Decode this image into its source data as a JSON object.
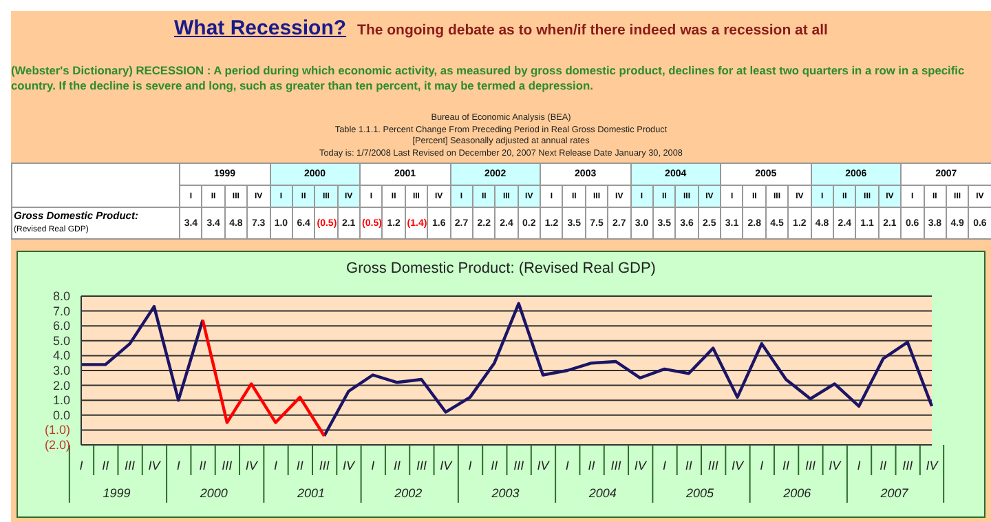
{
  "chart_data": {
    "type": "line",
    "title": "What Recession?",
    "subtitle": "The ongoing debate as to when/if there indeed was a recession at all",
    "annotations": [
      "(Webster's Dictionary)   RECESSION : A period during which economic activity, as measured by gross domestic product, declines for at least two quarters in a row in a specific country. If the decline is severe and long, such as greater than ten percent, it may be termed a depression.",
      "Bureau of Economic Analysis (BEA)",
      "Table 1.1.1. Percent Change From Preceding Period in Real Gross Domestic Product",
      "[Percent]   Seasonally adjusted at annual rates",
      "Today is: 1/7/2008   Last Revised on December 20, 2007  Next Release Date January 30, 2008",
      "Gross Domestic Product:",
      "(Revised Real GDP)",
      "Gross Domestic Product: (Revised Real GDP)",
      "1999",
      "2000",
      "2001",
      "2002",
      "2003",
      "2004",
      "2005",
      "2006",
      "2007"
    ],
    "categories": [
      "I",
      "II",
      "III",
      "IV",
      "I",
      "II",
      "III",
      "IV",
      "I",
      "II",
      "III",
      "IV",
      "I",
      "II",
      "III",
      "IV",
      "I",
      "II",
      "III",
      "IV",
      "I",
      "II",
      "III",
      "IV",
      "I",
      "II",
      "III",
      "IV",
      "I",
      "II",
      "III",
      "IV",
      "I",
      "II",
      "III",
      "IV"
    ],
    "series": [
      {
        "color": "#1c1466",
        "values": [
          3.4,
          3.4,
          4.8,
          7.3,
          1.0,
          6.4,
          null,
          null,
          null,
          null,
          -1.4,
          1.6,
          2.7,
          2.2,
          2.4,
          0.2,
          1.2,
          3.5,
          7.5,
          2.7,
          3.0,
          3.5,
          3.6,
          2.5,
          3.1,
          2.8,
          4.5,
          1.2,
          4.8,
          2.4,
          1.1,
          2.1,
          0.6,
          3.8,
          4.9,
          0.6
        ]
      },
      {
        "color": "#ff0000",
        "values": [
          null,
          null,
          null,
          null,
          null,
          6.4,
          -0.5,
          2.1,
          -0.5,
          1.2,
          -1.4,
          null,
          null,
          null,
          null,
          null,
          null,
          null,
          null,
          null,
          null,
          null,
          null,
          null,
          null,
          null,
          null,
          null,
          null,
          null,
          null,
          null,
          null,
          null,
          null,
          null
        ]
      }
    ],
    "value_labels": [
      "3.4",
      "3.4",
      "4.8",
      "7.3",
      "1.0",
      "6.4",
      "(0.5)",
      "2.1",
      "(0.5)",
      "1.2",
      "(1.4)",
      "1.6",
      "2.7",
      "2.2",
      "2.4",
      "0.2",
      "1.2",
      "3.5",
      "7.5",
      "2.7",
      "3.0",
      "3.5",
      "3.6",
      "2.5",
      "3.1",
      "2.8",
      "4.5",
      "1.2",
      "4.8",
      "2.4",
      "1.1",
      "2.1",
      "0.6",
      "3.8",
      "4.9",
      "0.6"
    ],
    "ylim": [
      -2,
      8
    ],
    "yticks": [
      {
        "value": 8,
        "label": "8.0"
      },
      {
        "value": 7,
        "label": "7.0"
      },
      {
        "value": 6,
        "label": "6.0"
      },
      {
        "value": 5,
        "label": "5.0"
      },
      {
        "value": 4,
        "label": "4.0"
      },
      {
        "value": 3,
        "label": "3.0"
      },
      {
        "value": 2,
        "label": "2.0"
      },
      {
        "value": 1,
        "label": "1.0"
      },
      {
        "value": 0,
        "label": "0.0"
      },
      {
        "value": -1,
        "label": "(1.0)"
      },
      {
        "value": -2,
        "label": "(2.0)"
      }
    ],
    "grid": "y",
    "marker": "none",
    "line_style": "solid",
    "legend": false
  }
}
